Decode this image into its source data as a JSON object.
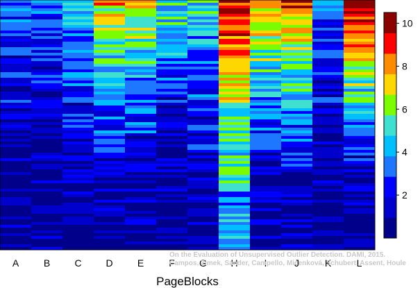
{
  "chart_data": {
    "type": "heatmap",
    "title": "",
    "xlabel": "PageBlocks",
    "ylabel": "",
    "categories": [
      "A",
      "B",
      "C",
      "D",
      "E",
      "F",
      "G",
      "H",
      "I",
      "J",
      "K",
      "L"
    ],
    "colorbar": {
      "range": [
        0,
        10.5
      ],
      "ticks": [
        "2",
        "4",
        "6",
        "8",
        "10"
      ],
      "colors": [
        "#00008B",
        "#0000CD",
        "#0000FF",
        "#1E78FF",
        "#00BFFF",
        "#40E0D0",
        "#7CFC00",
        "#FFD700",
        "#FF8C00",
        "#FF0000",
        "#8B0000"
      ]
    },
    "series_profile": [
      {
        "name": "A",
        "top": 3.0,
        "bottom": 0.5
      },
      {
        "name": "B",
        "top": 3.0,
        "bottom": 0.5
      },
      {
        "name": "C",
        "top": 4.8,
        "bottom": 0.4
      },
      {
        "name": "D",
        "top": 7.5,
        "bottom": 0.3
      },
      {
        "name": "E",
        "top": 7.5,
        "bottom": 0.3
      },
      {
        "name": "F",
        "top": 5.0,
        "bottom": 0.4
      },
      {
        "name": "G",
        "top": 5.0,
        "bottom": 0.4
      },
      {
        "name": "H",
        "top": 10.0,
        "bottom": 4.5
      },
      {
        "name": "I",
        "top": 8.0,
        "bottom": 1.0
      },
      {
        "name": "J",
        "top": 8.5,
        "bottom": 1.0
      },
      {
        "name": "K",
        "top": 3.0,
        "bottom": 0.5
      },
      {
        "name": "L",
        "top": 10.5,
        "bottom": 0.3
      }
    ]
  },
  "watermark": {
    "line1": "On the Evaluation of Unsupervised Outlier Detection. DAMI, 2015.",
    "line2": "Campos, Zimek, Sander, Campello, Micenková, Schubert, Assent, Houle"
  }
}
